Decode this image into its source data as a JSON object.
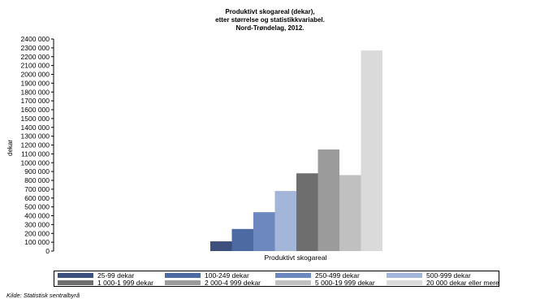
{
  "chart_data": {
    "type": "bar",
    "title_lines": [
      "Produktivt skogareal (dekar),",
      "etter størrelse og statistikkvariabel.",
      "Nord-Trøndelag, 2012."
    ],
    "ylabel": "dekar",
    "xlabel": "Produktivt skogareal",
    "ylim": [
      0,
      2400000
    ],
    "y_ticks": [
      0,
      100000,
      200000,
      300000,
      400000,
      500000,
      600000,
      700000,
      800000,
      900000,
      1000000,
      1100000,
      1200000,
      1300000,
      1400000,
      1500000,
      1600000,
      1700000,
      1800000,
      1900000,
      2000000,
      2100000,
      2200000,
      2300000,
      2400000
    ],
    "y_tick_labels": [
      "0",
      "100 000",
      "200 000",
      "300 000",
      "400 000",
      "500 000",
      "600 000",
      "700 000",
      "800 000",
      "900 000",
      "1000 000",
      "1100 000",
      "1200 000",
      "1300 000",
      "1400 000",
      "1500 000",
      "1600 000",
      "1700 000",
      "1800 000",
      "1900 000",
      "2000 000",
      "2100 000",
      "2200 000",
      "2300 000",
      "2400 000"
    ],
    "grid": false,
    "legend_position": "bottom",
    "categories": [
      "Produktivt skogareal"
    ],
    "series": [
      {
        "name": "25-99 dekar",
        "values": [
          110000
        ],
        "color": "#3d4f7c"
      },
      {
        "name": "100-249 dekar",
        "values": [
          250000
        ],
        "color": "#4e6aa3"
      },
      {
        "name": "250-499 dekar",
        "values": [
          440000
        ],
        "color": "#6d88be"
      },
      {
        "name": "500-999 dekar",
        "values": [
          680000
        ],
        "color": "#a4b5da"
      },
      {
        "name": "1 000-1 999 dekar",
        "values": [
          880000
        ],
        "color": "#6e6e6e"
      },
      {
        "name": "2 000-4 999 dekar",
        "values": [
          1150000
        ],
        "color": "#9b9b9b"
      },
      {
        "name": "5 000-19 999 dekar",
        "values": [
          860000
        ],
        "color": "#c0c0c0"
      },
      {
        "name": "20 000 dekar eller mere",
        "values": [
          2270000
        ],
        "color": "#dadada"
      }
    ]
  },
  "source": "Kilde: Statistisk sentralbyrå"
}
